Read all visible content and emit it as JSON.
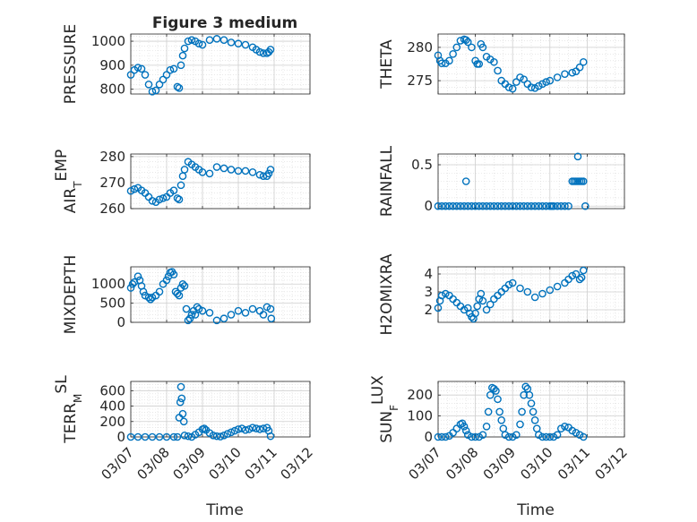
{
  "figure_title": "Figure 3 medium",
  "marker_color": "#0072BD",
  "x_axis": {
    "label": "Time",
    "ticks": [
      "03/07",
      "03/08",
      "03/09",
      "03/10",
      "03/11",
      "03/12"
    ],
    "range_days": [
      7,
      12
    ]
  },
  "chart_data": [
    {
      "type": "scatter",
      "name": "PRESSURE",
      "ylabel": "PRESSURE",
      "ylim": [
        780,
        1030
      ],
      "yticks": [
        800,
        900,
        1000
      ],
      "ytick_labels": [
        "800",
        "900",
        "1000"
      ],
      "grid": true,
      "minor_grid": true,
      "x": [
        7.0,
        7.1,
        7.2,
        7.3,
        7.4,
        7.5,
        7.6,
        7.7,
        7.8,
        7.9,
        8.0,
        8.1,
        8.2,
        8.3,
        8.35,
        8.4,
        8.45,
        8.5,
        8.6,
        8.7,
        8.8,
        8.9,
        9.0,
        9.2,
        9.4,
        9.6,
        9.8,
        10.0,
        10.2,
        10.4,
        10.5,
        10.6,
        10.7,
        10.8,
        10.85,
        10.9
      ],
      "y": [
        860,
        880,
        890,
        885,
        860,
        820,
        790,
        795,
        820,
        840,
        860,
        880,
        885,
        810,
        805,
        900,
        940,
        970,
        1000,
        1005,
        1000,
        990,
        985,
        1005,
        1010,
        1005,
        995,
        990,
        985,
        975,
        965,
        955,
        950,
        950,
        955,
        965
      ]
    },
    {
      "type": "scatter",
      "name": "THETA",
      "ylabel": "THETA",
      "ylim": [
        273,
        282
      ],
      "yticks": [
        275,
        280
      ],
      "ytick_labels": [
        "275",
        "280"
      ],
      "grid": true,
      "minor_grid": true,
      "x": [
        7.0,
        7.05,
        7.1,
        7.2,
        7.3,
        7.4,
        7.5,
        7.6,
        7.7,
        7.75,
        7.8,
        7.9,
        8.0,
        8.05,
        8.1,
        8.15,
        8.2,
        8.3,
        8.4,
        8.5,
        8.6,
        8.7,
        8.8,
        8.9,
        9.0,
        9.1,
        9.2,
        9.3,
        9.4,
        9.5,
        9.6,
        9.7,
        9.8,
        9.9,
        10.0,
        10.2,
        10.4,
        10.6,
        10.7,
        10.8,
        10.9
      ],
      "y": [
        278.8,
        278.0,
        277.6,
        277.6,
        278.0,
        279.0,
        280.0,
        281.0,
        281.2,
        281.1,
        280.8,
        280.0,
        278.0,
        277.5,
        277.5,
        280.5,
        280.0,
        278.6,
        278.2,
        277.8,
        276.5,
        275.0,
        274.5,
        274.0,
        273.8,
        274.8,
        275.5,
        275.2,
        274.5,
        274.0,
        273.9,
        274.2,
        274.5,
        274.8,
        275.0,
        275.5,
        276.0,
        276.2,
        276.4,
        277.0,
        277.8
      ]
    },
    {
      "type": "scatter",
      "name": "AIR_TEMP",
      "ylabel": "AIR_TEMP",
      "ylim": [
        260,
        281
      ],
      "yticks": [
        260,
        270,
        280
      ],
      "ytick_labels": [
        "260",
        "270",
        "280"
      ],
      "grid": true,
      "minor_grid": true,
      "x": [
        7.0,
        7.1,
        7.2,
        7.3,
        7.4,
        7.5,
        7.6,
        7.7,
        7.8,
        7.9,
        8.0,
        8.1,
        8.2,
        8.3,
        8.35,
        8.4,
        8.45,
        8.5,
        8.6,
        8.7,
        8.8,
        8.9,
        9.0,
        9.2,
        9.4,
        9.6,
        9.8,
        10.0,
        10.2,
        10.4,
        10.6,
        10.7,
        10.8,
        10.85,
        10.9
      ],
      "y": [
        266.8,
        267.5,
        268.0,
        267.0,
        266.0,
        264.5,
        263.0,
        262.5,
        263.5,
        264.0,
        264.5,
        266.0,
        267.0,
        264.0,
        263.5,
        269.0,
        272.5,
        275.0,
        278.0,
        277.0,
        276.0,
        275.0,
        274.0,
        273.5,
        276.0,
        275.5,
        275.0,
        274.5,
        274.5,
        274.0,
        273.0,
        272.5,
        272.5,
        273.5,
        275.0
      ]
    },
    {
      "type": "scatter",
      "name": "RAINFALL",
      "ylabel": "RAINFALL",
      "ylim": [
        -0.03,
        0.63
      ],
      "yticks": [
        0,
        0.5
      ],
      "ytick_labels": [
        "0",
        "0.5"
      ],
      "grid": true,
      "minor_grid": true,
      "x": [
        7.0,
        7.1,
        7.2,
        7.3,
        7.4,
        7.5,
        7.6,
        7.7,
        7.8,
        7.9,
        8.0,
        8.1,
        8.2,
        8.3,
        8.4,
        8.5,
        8.6,
        8.7,
        8.8,
        8.9,
        9.0,
        9.1,
        9.2,
        9.3,
        9.4,
        9.5,
        9.6,
        9.7,
        9.8,
        9.9,
        10.0,
        10.05,
        10.1,
        10.2,
        10.3,
        10.4,
        10.5,
        10.6,
        10.65,
        10.7,
        10.75,
        10.8,
        10.85,
        10.9,
        10.95,
        7.75,
        10.75
      ],
      "y": [
        0,
        0,
        0,
        0,
        0,
        0,
        0,
        0,
        0,
        0,
        0,
        0,
        0,
        0,
        0,
        0,
        0,
        0,
        0,
        0,
        0,
        0,
        0,
        0,
        0,
        0,
        0,
        0,
        0,
        0,
        0,
        0,
        0,
        0,
        0,
        0,
        0,
        0.3,
        0.3,
        0.3,
        0.3,
        0.3,
        0.3,
        0.3,
        0,
        0.3,
        0.6
      ]
    },
    {
      "type": "scatter",
      "name": "MIXDEPTH",
      "ylabel": "MIXDEPTH",
      "ylim": [
        0,
        1450
      ],
      "yticks": [
        0,
        500,
        1000
      ],
      "ytick_labels": [
        "0",
        "500",
        "1000"
      ],
      "grid": true,
      "minor_grid": true,
      "x": [
        7.0,
        7.05,
        7.1,
        7.2,
        7.25,
        7.3,
        7.35,
        7.4,
        7.5,
        7.55,
        7.6,
        7.7,
        7.8,
        7.9,
        8.0,
        8.05,
        8.1,
        8.15,
        8.2,
        8.25,
        8.3,
        8.35,
        8.4,
        8.45,
        8.5,
        8.55,
        8.6,
        8.65,
        8.7,
        8.75,
        8.8,
        8.85,
        8.9,
        9.0,
        9.2,
        9.4,
        9.6,
        9.8,
        10.0,
        10.2,
        10.4,
        10.6,
        10.7,
        10.8,
        10.9,
        10.92
      ],
      "y": [
        900,
        1000,
        1050,
        1200,
        1100,
        950,
        800,
        700,
        650,
        600,
        650,
        700,
        800,
        1000,
        1100,
        1200,
        1300,
        1320,
        1250,
        800,
        750,
        700,
        900,
        1000,
        950,
        350,
        50,
        100,
        200,
        300,
        200,
        400,
        350,
        300,
        250,
        50,
        100,
        200,
        300,
        250,
        350,
        300,
        200,
        400,
        350,
        100
      ]
    },
    {
      "type": "scatter",
      "name": "H2OMIXRA",
      "ylabel": "H2OMIXRA",
      "ylim": [
        1.3,
        4.4
      ],
      "yticks": [
        2,
        3,
        4
      ],
      "ytick_labels": [
        "2",
        "3",
        "4"
      ],
      "grid": true,
      "minor_grid": true,
      "x": [
        7.0,
        7.05,
        7.1,
        7.2,
        7.3,
        7.4,
        7.5,
        7.6,
        7.7,
        7.8,
        7.85,
        7.9,
        7.95,
        8.0,
        8.05,
        8.1,
        8.15,
        8.2,
        8.3,
        8.4,
        8.5,
        8.6,
        8.7,
        8.8,
        8.9,
        9.0,
        9.2,
        9.4,
        9.6,
        9.8,
        10.0,
        10.2,
        10.4,
        10.5,
        10.6,
        10.7,
        10.8,
        10.85,
        10.9
      ],
      "y": [
        2.1,
        2.5,
        2.8,
        2.9,
        2.8,
        2.6,
        2.4,
        2.2,
        2.0,
        2.1,
        1.8,
        1.6,
        1.5,
        1.8,
        2.2,
        2.6,
        2.9,
        2.5,
        2.0,
        2.3,
        2.6,
        2.8,
        3.0,
        3.2,
        3.4,
        3.5,
        3.2,
        3.0,
        2.7,
        2.9,
        3.1,
        3.3,
        3.5,
        3.7,
        3.9,
        4.0,
        3.7,
        3.8,
        4.2
      ]
    },
    {
      "type": "scatter",
      "name": "TERR_MSL",
      "ylabel": "TERR_MSL",
      "ylim": [
        0,
        720
      ],
      "yticks": [
        0,
        200,
        400,
        600
      ],
      "ytick_labels": [
        "0",
        "200",
        "400",
        "600"
      ],
      "grid": true,
      "minor_grid": true,
      "x": [
        7.0,
        7.2,
        7.4,
        7.6,
        7.8,
        8.0,
        8.2,
        8.3,
        8.35,
        8.38,
        8.4,
        8.42,
        8.45,
        8.48,
        8.5,
        8.6,
        8.7,
        8.8,
        8.9,
        9.0,
        9.05,
        9.1,
        9.2,
        9.3,
        9.4,
        9.5,
        9.6,
        9.7,
        9.8,
        9.9,
        10.0,
        10.1,
        10.2,
        10.3,
        10.4,
        10.5,
        10.6,
        10.7,
        10.8,
        10.85,
        10.9
      ],
      "y": [
        0,
        0,
        0,
        0,
        0,
        0,
        0,
        0,
        250,
        450,
        650,
        500,
        300,
        200,
        20,
        10,
        0,
        30,
        60,
        100,
        110,
        90,
        50,
        20,
        10,
        5,
        20,
        40,
        60,
        80,
        100,
        110,
        90,
        100,
        120,
        110,
        100,
        110,
        120,
        80,
        10
      ]
    },
    {
      "type": "scatter",
      "name": "SUN_FLUX",
      "ylabel": "SUN_FLUX",
      "ylim": [
        0,
        265
      ],
      "yticks": [
        0,
        100,
        200
      ],
      "ytick_labels": [
        "0",
        "100",
        "200"
      ],
      "grid": true,
      "minor_grid": true,
      "x": [
        7.0,
        7.1,
        7.2,
        7.3,
        7.4,
        7.5,
        7.6,
        7.65,
        7.7,
        7.75,
        7.8,
        7.9,
        8.0,
        8.1,
        8.2,
        8.3,
        8.35,
        8.4,
        8.45,
        8.5,
        8.55,
        8.6,
        8.65,
        8.7,
        8.75,
        8.8,
        8.9,
        9.0,
        9.1,
        9.2,
        9.25,
        9.3,
        9.35,
        9.4,
        9.45,
        9.5,
        9.55,
        9.6,
        9.65,
        9.7,
        9.8,
        9.9,
        10.0,
        10.1,
        10.2,
        10.3,
        10.4,
        10.5,
        10.6,
        10.7,
        10.8,
        10.9
      ],
      "y": [
        0,
        0,
        0,
        5,
        20,
        40,
        60,
        65,
        50,
        30,
        10,
        0,
        0,
        0,
        10,
        50,
        120,
        200,
        235,
        230,
        220,
        180,
        120,
        80,
        40,
        10,
        0,
        0,
        10,
        60,
        120,
        200,
        240,
        230,
        200,
        160,
        120,
        80,
        40,
        10,
        0,
        0,
        0,
        0,
        10,
        40,
        50,
        45,
        30,
        20,
        10,
        0
      ]
    }
  ]
}
